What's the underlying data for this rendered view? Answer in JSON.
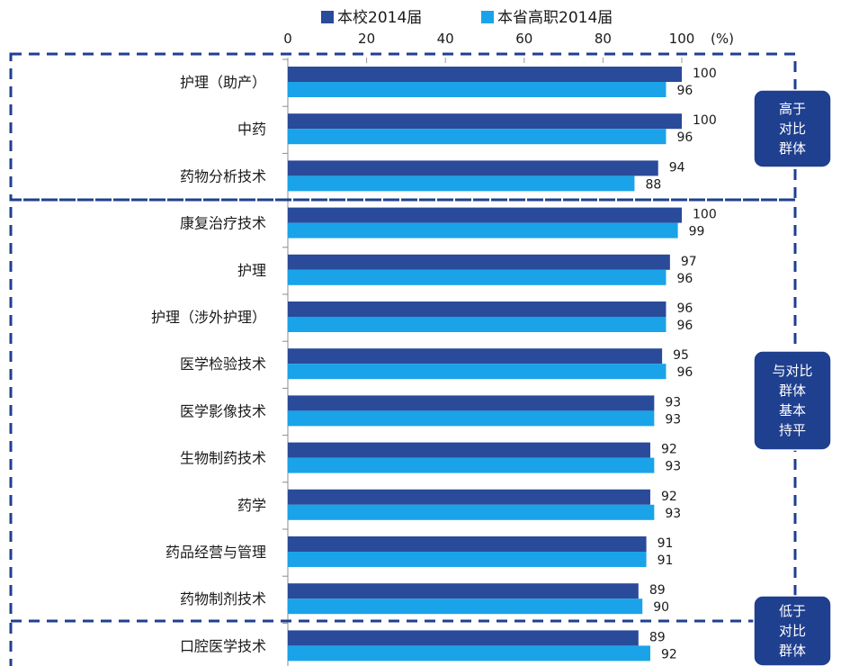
{
  "chart_data": {
    "type": "bar",
    "orientation": "horizontal",
    "legend": [
      "本校2014届",
      "本省高职2014届"
    ],
    "series": [
      {
        "name": "本校2014届",
        "color": "#2a4a9a",
        "values": [
          100,
          100,
          94,
          100,
          97,
          96,
          95,
          93,
          92,
          92,
          91,
          89,
          89
        ]
      },
      {
        "name": "本省高职2014届",
        "color": "#1aa3e8",
        "values": [
          96,
          96,
          88,
          99,
          96,
          96,
          96,
          93,
          93,
          93,
          91,
          90,
          92
        ]
      }
    ],
    "categories": [
      "护理（助产）",
      "中药",
      "药物分析技术",
      "康复治疗技术",
      "护理",
      "护理（涉外护理）",
      "医学检验技术",
      "医学影像技术",
      "生物制药技术",
      "药学",
      "药品经营与管理",
      "药物制剂技术",
      "口腔医学技术"
    ],
    "xlim": [
      0,
      100
    ],
    "xticks": [
      "0",
      "20",
      "40",
      "60",
      "80",
      "100"
    ],
    "unit": "(%)",
    "legend_position": "top",
    "groups": [
      {
        "label_lines": [
          "高于",
          "对比",
          "群体"
        ],
        "color": "#1f3f8f"
      },
      {
        "label_lines": [
          "与对比",
          "群体",
          "基本",
          "持平"
        ],
        "color": "#1f3f8f"
      },
      {
        "label_lines": [
          "低于",
          "对比",
          "群体"
        ],
        "color": "#1f3f8f"
      }
    ]
  }
}
